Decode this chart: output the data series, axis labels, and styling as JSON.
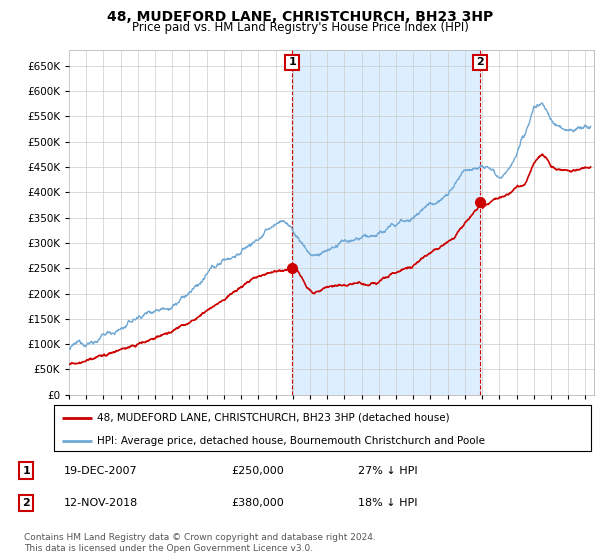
{
  "title": "48, MUDEFORD LANE, CHRISTCHURCH, BH23 3HP",
  "subtitle": "Price paid vs. HM Land Registry's House Price Index (HPI)",
  "ylim": [
    0,
    680000
  ],
  "yticks": [
    0,
    50000,
    100000,
    150000,
    200000,
    250000,
    300000,
    350000,
    400000,
    450000,
    500000,
    550000,
    600000,
    650000
  ],
  "xlim_start": 1995.0,
  "xlim_end": 2025.5,
  "sale1_x": 2007.96,
  "sale1_y": 250000,
  "sale2_x": 2018.87,
  "sale2_y": 380000,
  "sale_color": "#cc0000",
  "hpi_color": "#6fa8d4",
  "shade_color": "#ddeeff",
  "legend_label_red": "48, MUDEFORD LANE, CHRISTCHURCH, BH23 3HP (detached house)",
  "legend_label_blue": "HPI: Average price, detached house, Bournemouth Christchurch and Poole",
  "footnote": "Contains HM Land Registry data © Crown copyright and database right 2024.\nThis data is licensed under the Open Government Licence v3.0.",
  "background_color": "#ffffff",
  "grid_color": "#cccccc"
}
